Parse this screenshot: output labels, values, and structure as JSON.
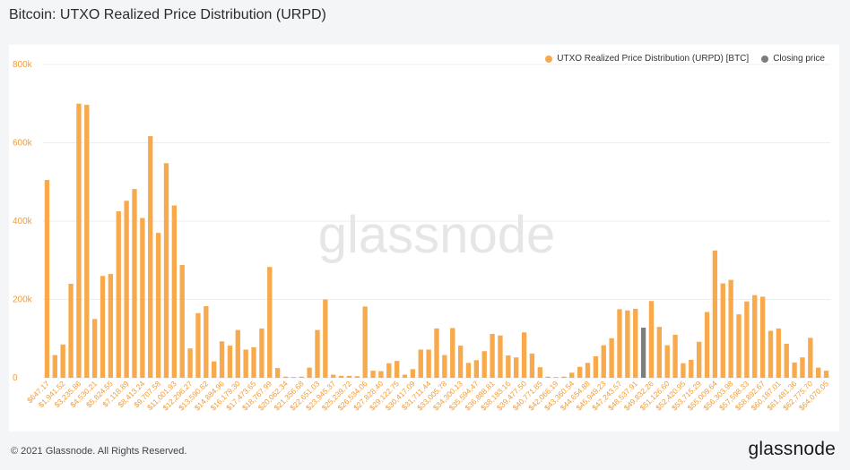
{
  "title": "Bitcoin: UTXO Realized Price Distribution (URPD)",
  "footer": {
    "copyright": "© 2021 Glassnode. All Rights Reserved.",
    "logo": "glassnode"
  },
  "watermark": "glassnode",
  "colors": {
    "bar": "#f7a94b",
    "closing": "#7d7d7d",
    "axis_text": "#f39c35",
    "grid": "#eceef1"
  },
  "chart_data": {
    "type": "bar",
    "title": "",
    "xlabel": "",
    "ylabel": "",
    "ylim": [
      0,
      800000
    ],
    "yticks": [
      {
        "value": 0,
        "label": "0"
      },
      {
        "value": 200000,
        "label": "200k"
      },
      {
        "value": 400000,
        "label": "400k"
      },
      {
        "value": 600000,
        "label": "600k"
      },
      {
        "value": 800000,
        "label": "800k"
      }
    ],
    "xtick_labels": [
      "$647.17",
      "$1,941.52",
      "$3,235.86",
      "$4,530.21",
      "$5,824.55",
      "$7,118.89",
      "$8,413.24",
      "$9,707.58",
      "$11,001.93",
      "$12,296.27",
      "$13,590.62",
      "$14,884.96",
      "$16,179.30",
      "$17,473.65",
      "$18,767.99",
      "$20,062.34",
      "$21,356.68",
      "$22,651.03",
      "$23,945.37",
      "$25,239.72",
      "$26,534.06",
      "$27,828.40",
      "$29,122.75",
      "$30,417.09",
      "$31,711.44",
      "$33,005.78",
      "$34,300.13",
      "$35,594.47",
      "$36,888.81",
      "$38,183.16",
      "$39,477.50",
      "$40,771.85",
      "$42,066.19",
      "$43,360.54",
      "$44,654.88",
      "$45,949.23",
      "$47,243.57",
      "$48,537.91",
      "$49,832.26",
      "$51,126.60",
      "$52,420.95",
      "$53,715.29",
      "$55,009.64",
      "$56,303.98",
      "$57,598.33",
      "$58,892.67",
      "$60,187.01",
      "$61,481.36",
      "$62,775.70",
      "$64,070.05"
    ],
    "legend_position": "top-right",
    "grid": true,
    "closing_index": 75,
    "series": [
      {
        "name": "UTXO Realized Price Distribution (URPD) [BTC]",
        "values": [
          505000,
          58000,
          85000,
          240000,
          700000,
          697000,
          150000,
          260000,
          265000,
          425000,
          452000,
          482000,
          408000,
          617000,
          370000,
          548000,
          440000,
          288000,
          75000,
          165000,
          183000,
          42000,
          93000,
          82000,
          122000,
          72000,
          78000,
          126000,
          283000,
          25000,
          3000,
          2000,
          3000,
          26000,
          122000,
          200000,
          8000,
          5000,
          5000,
          4000,
          182000,
          18000,
          17000,
          37000,
          43000,
          8000,
          22000,
          72000,
          72000,
          126000,
          58000,
          127000,
          82000,
          38000,
          45000,
          68000,
          112000,
          108000,
          57000,
          52000,
          116000,
          62000,
          27000,
          3000,
          2000,
          3000,
          13000,
          28000,
          38000,
          55000,
          83000,
          101000,
          175000,
          172000,
          176000,
          196000,
          130000,
          83000,
          110000,
          37000,
          46000,
          92000,
          168000,
          325000,
          241000,
          250000,
          162000,
          195000,
          211000,
          207000,
          120000,
          126000,
          87000,
          39000,
          52000,
          102000,
          26000,
          18000
        ]
      },
      {
        "name": "Closing price",
        "values": [
          128000
        ]
      }
    ]
  }
}
